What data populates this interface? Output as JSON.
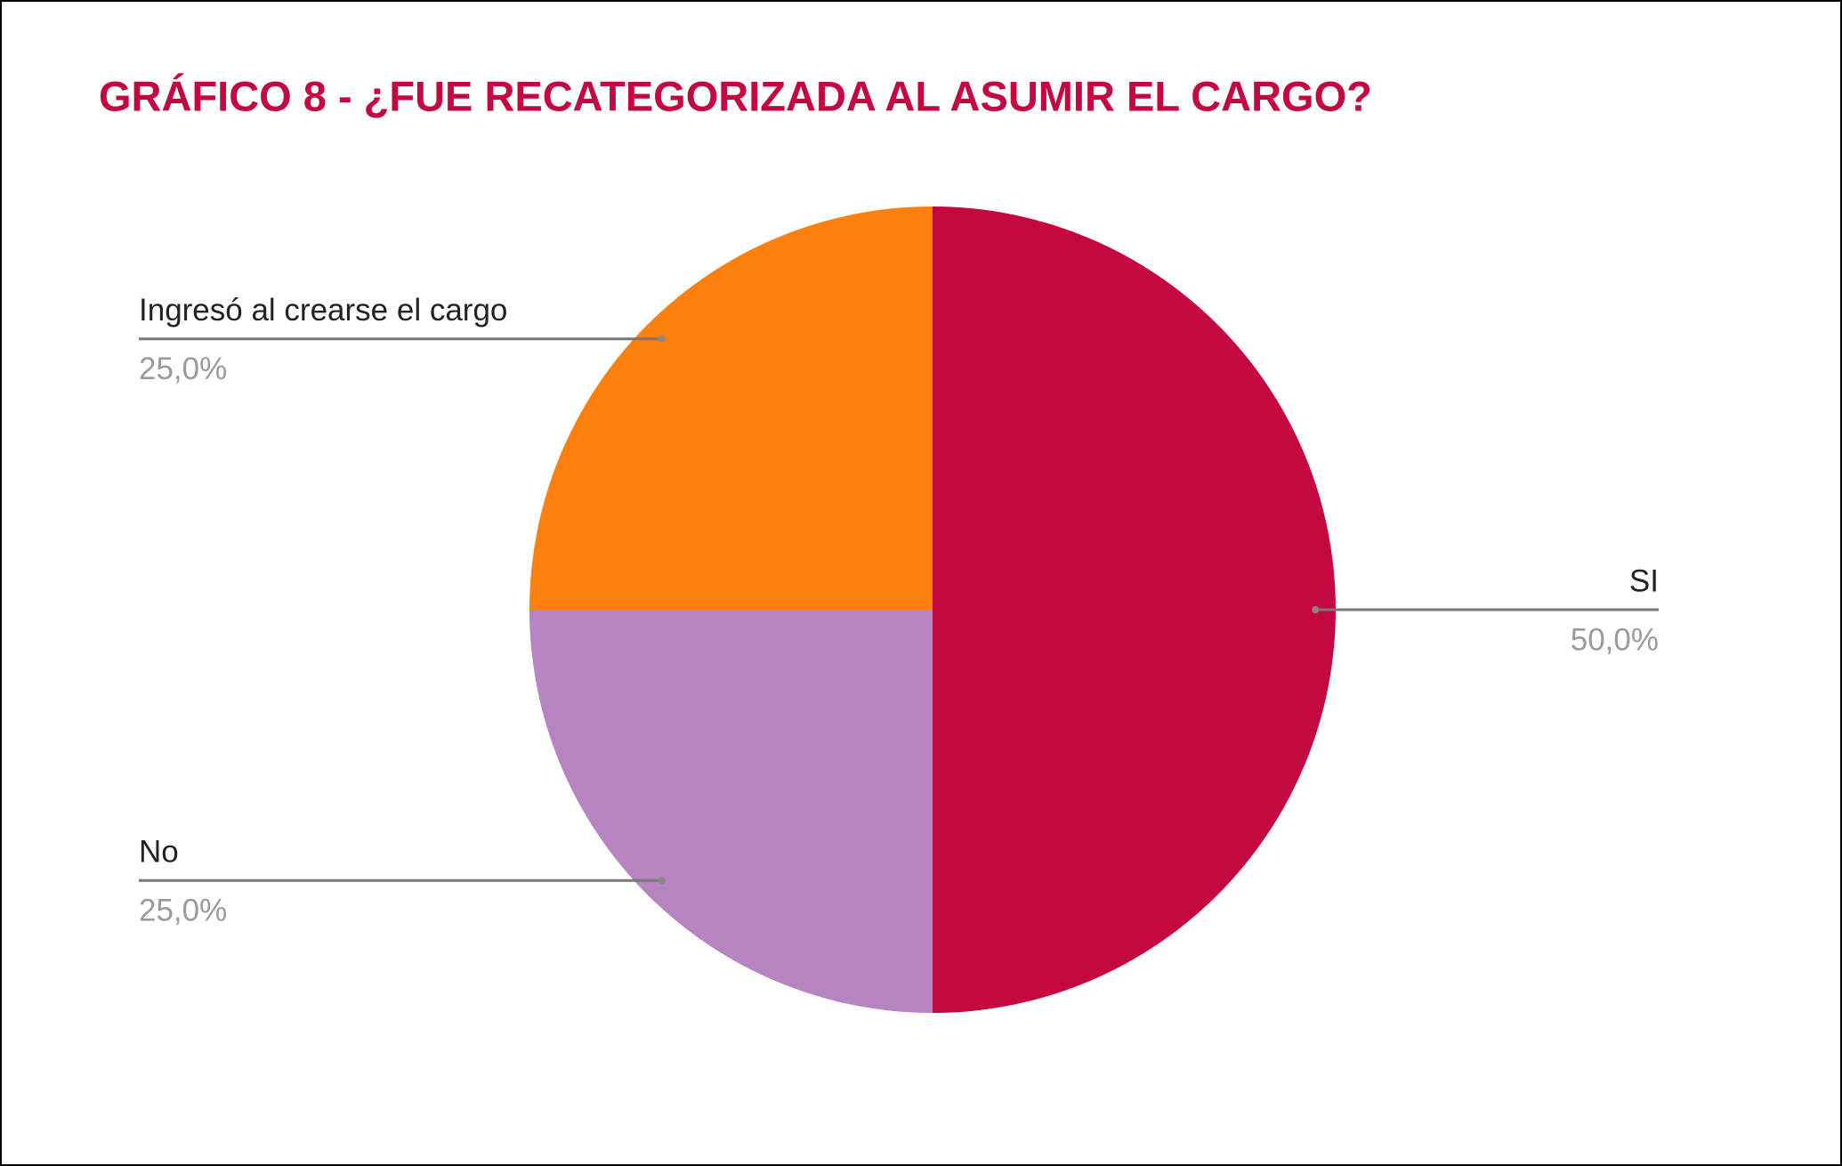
{
  "chart_data": {
    "type": "pie",
    "title": "GRÁFICO 8 - ¿FUE RECATEGORIZADA AL ASUMIR EL CARGO?",
    "title_color": "#c4073f",
    "categories": [
      "SI",
      "No",
      "Ingresó al crearse el cargo"
    ],
    "values": [
      50,
      25,
      25
    ],
    "value_labels": [
      "50,0%",
      "25,0%",
      "25,0%"
    ],
    "colors": [
      "#c4073f",
      "#b784c2",
      "#fd7f0e"
    ]
  }
}
